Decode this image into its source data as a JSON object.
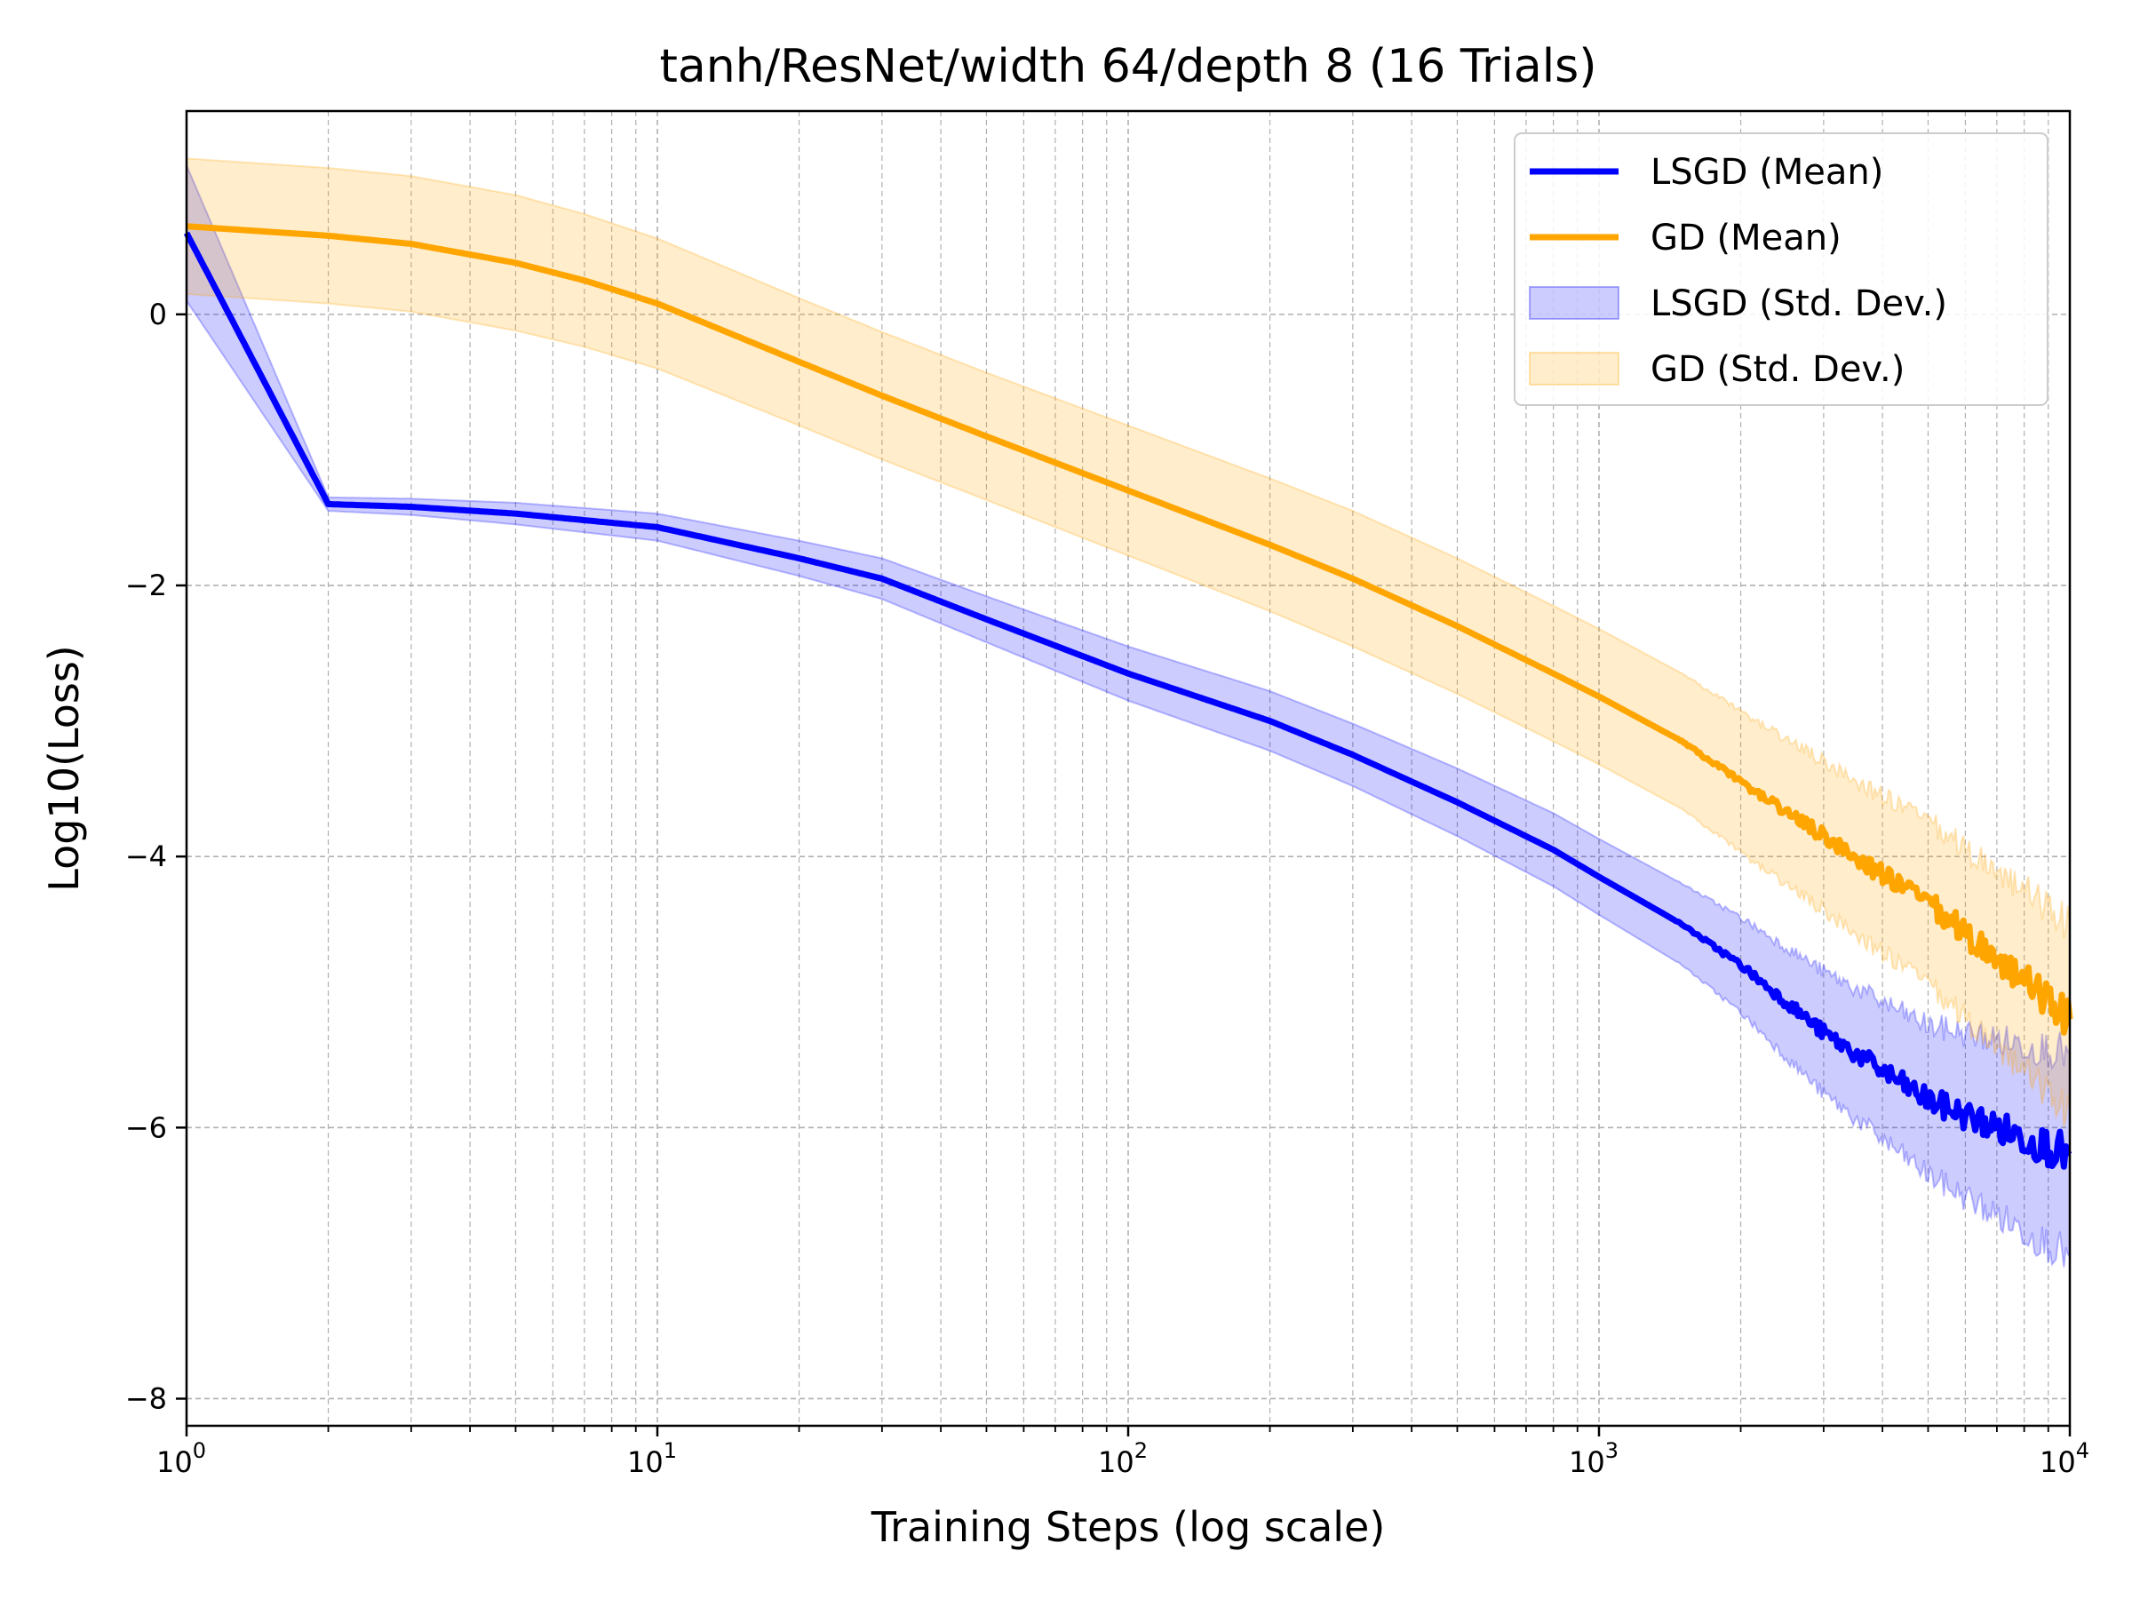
{
  "chart_data": {
    "type": "line",
    "title": "tanh/ResNet/width 64/depth 8 (16 Trials)",
    "xlabel": "Training Steps (log scale)",
    "ylabel": "Log10(Loss)",
    "x_scale": "log",
    "xlim": [
      1,
      10000
    ],
    "ylim": [
      -8.2,
      1.5
    ],
    "grid": true,
    "legend_position": "top-right",
    "x_ticks": [
      {
        "base": "10",
        "exp": "0",
        "value": 1
      },
      {
        "base": "10",
        "exp": "1",
        "value": 10
      },
      {
        "base": "10",
        "exp": "2",
        "value": 100
      },
      {
        "base": "10",
        "exp": "3",
        "value": 1000
      },
      {
        "base": "10",
        "exp": "4",
        "value": 10000
      }
    ],
    "y_ticks": [
      {
        "label": "0",
        "value": 0
      },
      {
        "label": "−2",
        "value": -2
      },
      {
        "label": "−4",
        "value": -4
      },
      {
        "label": "−6",
        "value": -6
      },
      {
        "label": "−8",
        "value": -8
      }
    ],
    "legend": [
      {
        "label": "LSGD (Mean)",
        "kind": "line",
        "color": "#0000ff"
      },
      {
        "label": "GD (Mean)",
        "kind": "line",
        "color": "#ffa500"
      },
      {
        "label": "LSGD (Std. Dev.)",
        "kind": "band",
        "color": "#0000ff"
      },
      {
        "label": "GD (Std. Dev.)",
        "kind": "band",
        "color": "#ffa500"
      }
    ],
    "series": [
      {
        "name": "LSGD",
        "color": "#0000ff",
        "x": [
          1,
          2,
          3,
          5,
          10,
          20,
          30,
          50,
          100,
          200,
          300,
          500,
          800,
          1000,
          1500,
          2000,
          3000,
          5000,
          7000,
          10000
        ],
        "mean": [
          0.6,
          -1.4,
          -1.42,
          -1.47,
          -1.57,
          -1.8,
          -1.95,
          -2.25,
          -2.65,
          -3.0,
          -3.25,
          -3.6,
          -3.95,
          -4.15,
          -4.5,
          -4.8,
          -5.3,
          -5.8,
          -6.0,
          -6.2
        ],
        "std": [
          0.5,
          0.05,
          0.06,
          0.08,
          0.1,
          0.13,
          0.15,
          0.17,
          0.2,
          0.22,
          0.23,
          0.25,
          0.27,
          0.28,
          0.3,
          0.35,
          0.45,
          0.55,
          0.65,
          0.75
        ]
      },
      {
        "name": "GD",
        "color": "#ffa500",
        "x": [
          1,
          2,
          3,
          5,
          7,
          10,
          20,
          30,
          50,
          100,
          200,
          300,
          500,
          800,
          1000,
          1500,
          2000,
          3000,
          5000,
          7000,
          10000
        ],
        "mean": [
          0.65,
          0.58,
          0.52,
          0.38,
          0.25,
          0.08,
          -0.35,
          -0.6,
          -0.9,
          -1.3,
          -1.7,
          -1.95,
          -2.3,
          -2.65,
          -2.82,
          -3.15,
          -3.45,
          -3.85,
          -4.35,
          -4.75,
          -5.2
        ],
        "std": [
          0.5,
          0.5,
          0.5,
          0.5,
          0.49,
          0.48,
          0.47,
          0.47,
          0.47,
          0.48,
          0.49,
          0.5,
          0.5,
          0.5,
          0.5,
          0.5,
          0.52,
          0.55,
          0.6,
          0.65,
          0.7
        ]
      }
    ]
  }
}
